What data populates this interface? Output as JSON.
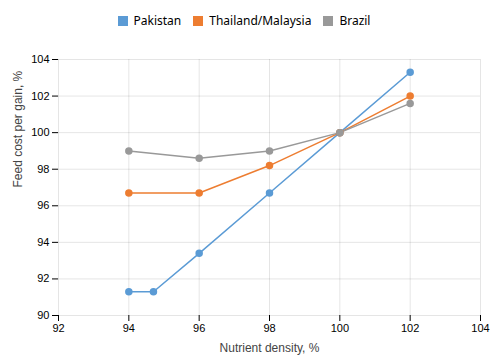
{
  "chart_data": {
    "type": "line",
    "xlabel": "Nutrient density, %",
    "ylabel": "Feed cost per gain, %",
    "xlim": [
      92,
      104
    ],
    "ylim": [
      90,
      104
    ],
    "xticks": [
      92,
      94,
      96,
      98,
      100,
      102,
      104
    ],
    "yticks": [
      90,
      92,
      94,
      96,
      98,
      100,
      102,
      104
    ],
    "grid": true,
    "legend": "top",
    "marker": "circle",
    "series": [
      {
        "name": "Pakistan",
        "color": "#5B9BD5",
        "x": [
          94,
          94.7,
          96,
          98,
          100,
          102
        ],
        "values": [
          91.3,
          91.3,
          93.4,
          96.7,
          100.0,
          103.3
        ]
      },
      {
        "name": "Thailand/Malaysia",
        "color": "#ED7D31",
        "x": [
          94,
          96,
          98,
          100,
          102
        ],
        "values": [
          96.7,
          96.7,
          98.2,
          100.0,
          102.0
        ]
      },
      {
        "name": "Brazil",
        "color": "#999999",
        "x": [
          94,
          96,
          98,
          100,
          102
        ],
        "values": [
          99.0,
          98.6,
          99.0,
          100.0,
          101.6
        ]
      }
    ]
  }
}
